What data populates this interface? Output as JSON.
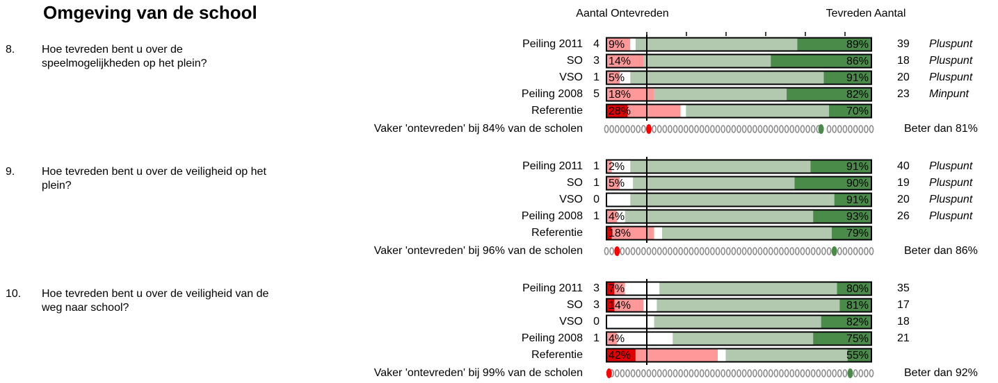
{
  "title": "Omgeving van de school",
  "header": {
    "left": "Aantal Ontevreden",
    "right": "Tevreden Aantal"
  },
  "questions": [
    {
      "number": "8.",
      "lines": [
        "Hoe tevreden bent u over de",
        "speelmogelijkheden op het plein?"
      ],
      "rows": [
        {
          "label": "Peiling 2011",
          "count": "4",
          "ontevreden_label": "9%",
          "tevreden_label": "89%",
          "segments": [
            0,
            9,
            2,
            61,
            28
          ],
          "tevreden_count": "39",
          "verdict": "Pluspunt"
        },
        {
          "label": "SO",
          "count": "3",
          "ontevreden_label": "14%",
          "tevreden_label": "86%",
          "segments": [
            0,
            14,
            0,
            48,
            38
          ],
          "tevreden_count": "18",
          "verdict": "Pluspunt"
        },
        {
          "label": "VSO",
          "count": "1",
          "ontevreden_label": "5%",
          "tevreden_label": "91%",
          "segments": [
            0,
            5,
            4,
            73,
            18
          ],
          "tevreden_count": "20",
          "verdict": "Pluspunt"
        },
        {
          "label": "Peiling 2008",
          "count": "5",
          "ontevreden_label": "18%",
          "tevreden_label": "82%",
          "segments": [
            0,
            18,
            0,
            50,
            32
          ],
          "tevreden_count": "23",
          "verdict": "Minpunt"
        },
        {
          "label": "Referentie",
          "count": null,
          "ontevreden_label": "28%",
          "tevreden_label": "70%",
          "segments": [
            8,
            20,
            2,
            54,
            16
          ],
          "tevreden_count": null,
          "verdict": null
        }
      ],
      "footer": {
        "left": "Vaker 'ontevreden' bij 84% van de scholen",
        "right": "Beter dan 81%",
        "ontevreden_marker": 84,
        "beter_marker": 81
      }
    },
    {
      "number": "9.",
      "lines": [
        "Hoe tevreden bent u over de veiligheid op het",
        "plein?"
      ],
      "rows": [
        {
          "label": "Peiling 2011",
          "count": "1",
          "ontevreden_label": "2%",
          "tevreden_label": "91%",
          "segments": [
            0,
            2,
            7,
            68,
            23
          ],
          "tevreden_count": "40",
          "verdict": "Pluspunt"
        },
        {
          "label": "SO",
          "count": "1",
          "ontevreden_label": "5%",
          "tevreden_label": "90%",
          "segments": [
            0,
            5,
            5,
            61,
            29
          ],
          "tevreden_count": "19",
          "verdict": "Pluspunt"
        },
        {
          "label": "VSO",
          "count": "0",
          "ontevreden_label": null,
          "tevreden_label": "91%",
          "segments": [
            0,
            0,
            9,
            77,
            14
          ],
          "tevreden_count": "20",
          "verdict": "Pluspunt"
        },
        {
          "label": "Peiling 2008",
          "count": "1",
          "ontevreden_label": "4%",
          "tevreden_label": "93%",
          "segments": [
            0,
            4,
            3,
            71,
            22
          ],
          "tevreden_count": "26",
          "verdict": "Pluspunt"
        },
        {
          "label": "Referentie",
          "count": null,
          "ontevreden_label": "18%",
          "tevreden_label": "79%",
          "segments": [
            2,
            16,
            3,
            64,
            15
          ],
          "tevreden_count": null,
          "verdict": null
        }
      ],
      "footer": {
        "left": "Vaker 'ontevreden' bij 96% van de scholen",
        "right": "Beter dan 86%",
        "ontevreden_marker": 96,
        "beter_marker": 86
      }
    },
    {
      "number": "10.",
      "lines": [
        "Hoe tevreden bent u over de veiligheid van de",
        "weg naar school?"
      ],
      "rows": [
        {
          "label": "Peiling 2011",
          "count": "3",
          "ontevreden_label": "7%",
          "tevreden_label": "80%",
          "segments": [
            3,
            4,
            13,
            67,
            13
          ],
          "tevreden_count": "35",
          "verdict": null
        },
        {
          "label": "SO",
          "count": "3",
          "ontevreden_label": "14%",
          "tevreden_label": "81%",
          "segments": [
            3,
            11,
            5,
            69,
            12
          ],
          "tevreden_count": "17",
          "verdict": null
        },
        {
          "label": "VSO",
          "count": "0",
          "ontevreden_label": null,
          "tevreden_label": "82%",
          "segments": [
            0,
            0,
            18,
            63,
            19
          ],
          "tevreden_count": "18",
          "verdict": null
        },
        {
          "label": "Peiling 2008",
          "count": "1",
          "ontevreden_label": "4%",
          "tevreden_label": "75%",
          "segments": [
            0,
            4,
            21,
            53,
            22
          ],
          "tevreden_count": "21",
          "verdict": null
        },
        {
          "label": "Referentie",
          "count": null,
          "ontevreden_label": "42%",
          "tevreden_label": "55%",
          "segments": [
            11,
            31,
            3,
            46,
            9
          ],
          "tevreden_count": null,
          "verdict": null
        }
      ],
      "footer": {
        "left": "Vaker 'ontevreden' bij 99% van de scholen",
        "right": "Beter dan 92%",
        "ontevreden_marker": 99,
        "beter_marker": 92
      }
    }
  ]
}
